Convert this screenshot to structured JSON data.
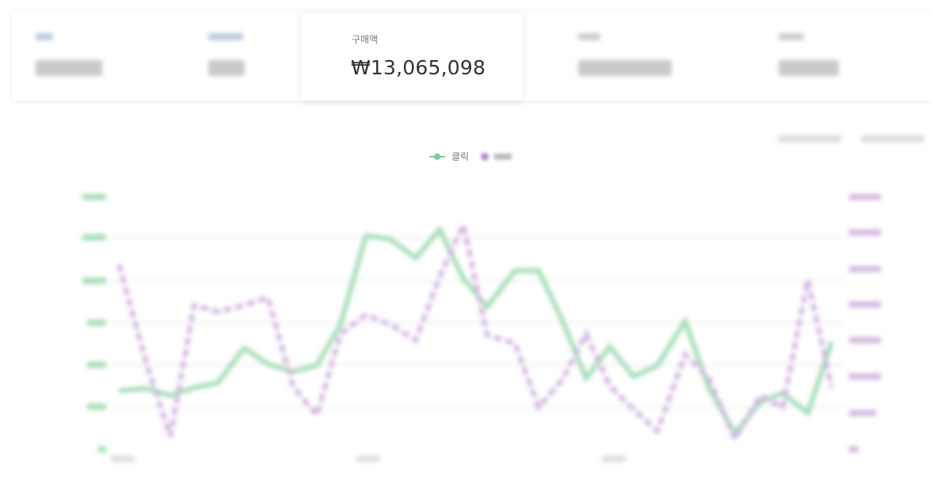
{
  "kpi": {
    "label": "구매액",
    "value": "₩13,065,098"
  },
  "legend": {
    "click": "클릭"
  }
}
